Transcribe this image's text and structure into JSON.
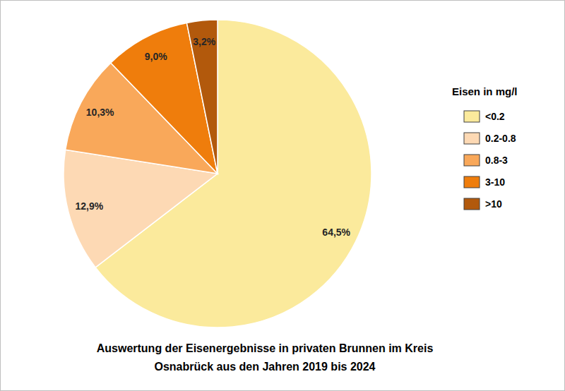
{
  "chart_data": {
    "type": "pie",
    "title": [
      "Auswertung der Eisenergebnisse in privaten Brunnen im Kreis",
      "Osnabrück aus den Jahren 2019 bis 2024"
    ],
    "legend_title": "Eisen in mg/l",
    "categories": [
      "<0.2",
      "0.2-0.8",
      "0.8-3",
      "3-10",
      ">10"
    ],
    "values": [
      64.5,
      12.9,
      10.3,
      9.0,
      3.2
    ],
    "value_labels": [
      "64,5%",
      "12,9%",
      "10,3%",
      "9,0%",
      "3,2%"
    ],
    "colors": [
      "#fbea9c",
      "#fdd9b4",
      "#f9a85a",
      "#ef7d0c",
      "#b2590c"
    ],
    "data_labels": true,
    "legend": "right"
  }
}
